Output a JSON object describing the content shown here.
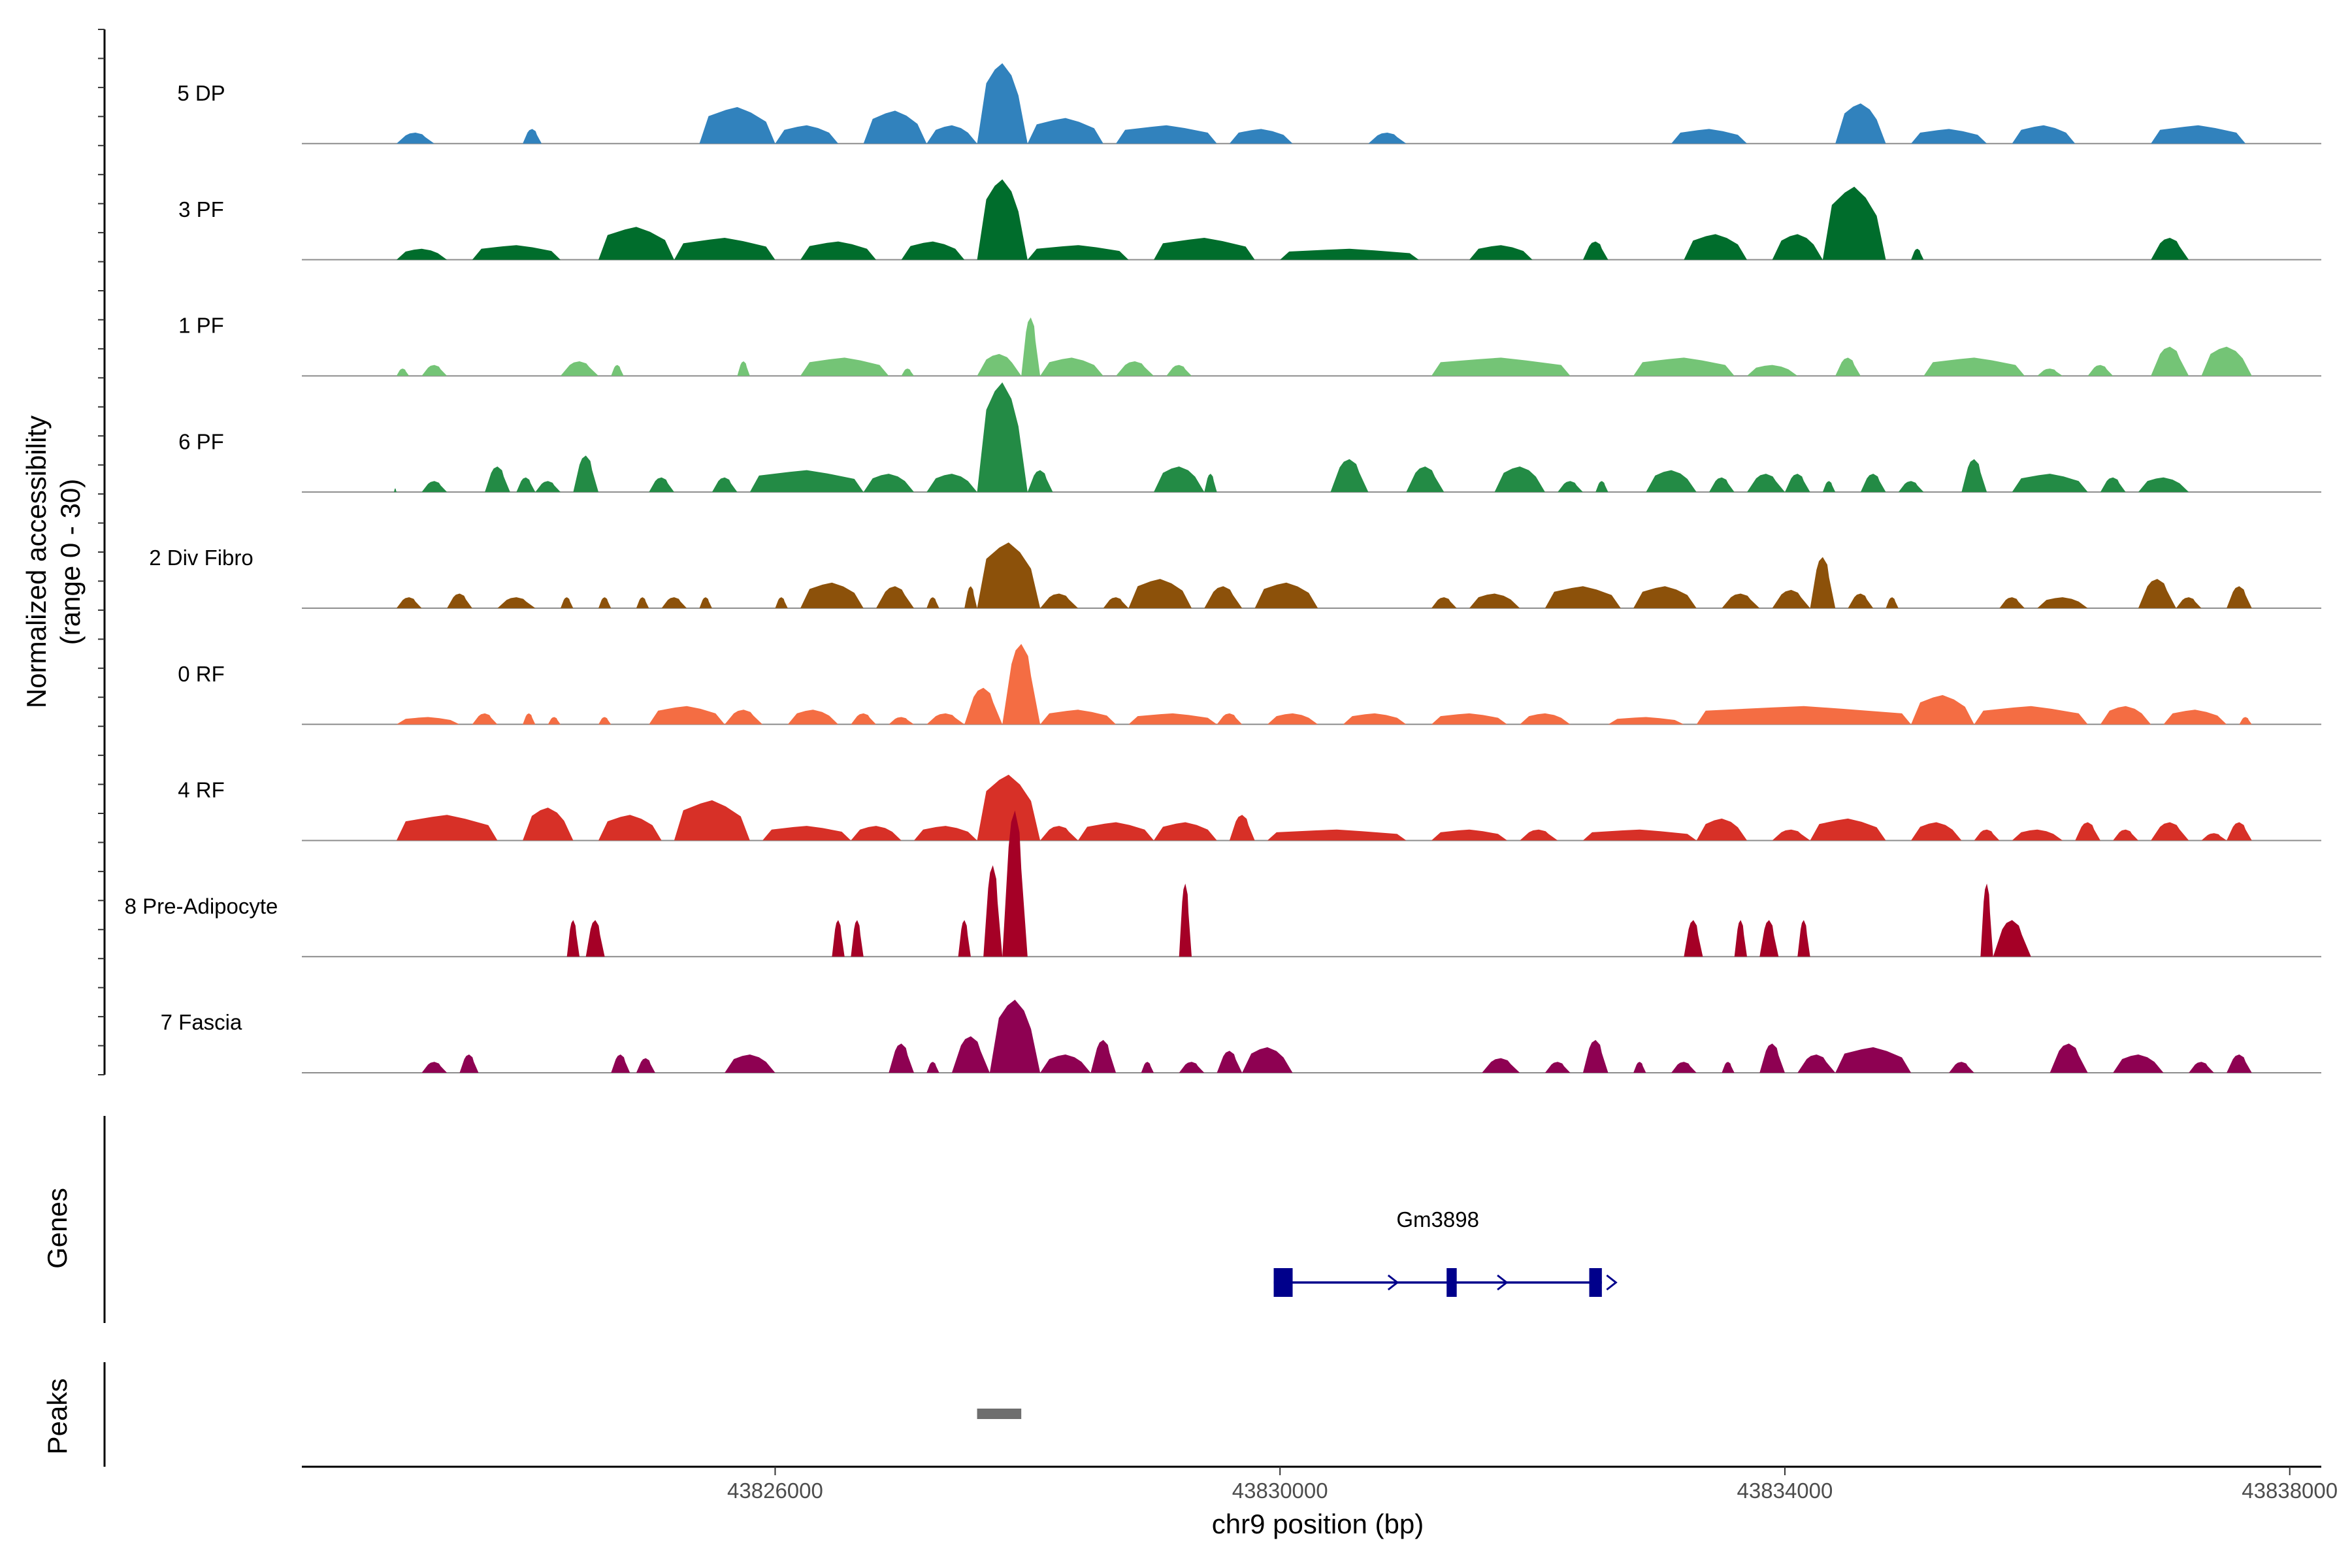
{
  "chart_data": {
    "type": "area",
    "title": "",
    "ylabel": [
      "Normalized accessibility",
      "(range 0 - 30)"
    ],
    "ylim": [
      0,
      30
    ],
    "xlabel": "chr9 position (bp)",
    "xlim": [
      43822250,
      43838250
    ],
    "xticks": [
      43826000,
      43830000,
      43834000,
      43838000
    ],
    "xtick_labels": [
      "43826000",
      "43830000",
      "43834000",
      "43838000"
    ],
    "tracks": [
      {
        "name": "5 DP",
        "color": "#3182bd",
        "regions": [
          [
            43823000,
            43823300,
            3
          ],
          [
            43824000,
            43824150,
            4
          ],
          [
            43825400,
            43826000,
            10
          ],
          [
            43826000,
            43826500,
            5
          ],
          [
            43826700,
            43827200,
            9
          ],
          [
            43827200,
            43827600,
            5
          ],
          [
            43827600,
            43828000,
            22
          ],
          [
            43828000,
            43828600,
            7
          ],
          [
            43828700,
            43829500,
            5
          ],
          [
            43829600,
            43830100,
            4
          ],
          [
            43830700,
            43831000,
            3
          ],
          [
            43833100,
            43833700,
            4
          ],
          [
            43834400,
            43834800,
            11
          ],
          [
            43835000,
            43835600,
            4
          ],
          [
            43835800,
            43836300,
            5
          ],
          [
            43836900,
            43837650,
            5
          ]
        ]
      },
      {
        "name": "3 PF",
        "color": "#006d2c",
        "regions": [
          [
            43823000,
            43823400,
            3
          ],
          [
            43823600,
            43824300,
            4
          ],
          [
            43824600,
            43825200,
            9
          ],
          [
            43825200,
            43826000,
            6
          ],
          [
            43826200,
            43826800,
            5
          ],
          [
            43827000,
            43827500,
            5
          ],
          [
            43827600,
            43828000,
            22
          ],
          [
            43828000,
            43828800,
            4
          ],
          [
            43829000,
            43829800,
            6
          ],
          [
            43830000,
            43831100,
            3
          ],
          [
            43831500,
            43832000,
            4
          ],
          [
            43832400,
            43832600,
            5
          ],
          [
            43833200,
            43833700,
            7
          ],
          [
            43833900,
            43834300,
            7
          ],
          [
            43834300,
            43834800,
            20
          ],
          [
            43835000,
            43835100,
            3
          ],
          [
            43836900,
            43837200,
            6
          ]
        ]
      },
      {
        "name": "1 PF",
        "color": "#74c476",
        "regions": [
          [
            43823000,
            43823100,
            2
          ],
          [
            43823200,
            43823400,
            3
          ],
          [
            43824300,
            43824600,
            4
          ],
          [
            43824700,
            43824800,
            3
          ],
          [
            43825700,
            43825800,
            4
          ],
          [
            43826200,
            43826900,
            5
          ],
          [
            43827000,
            43827100,
            2
          ],
          [
            43827600,
            43827950,
            6
          ],
          [
            43827950,
            43828100,
            16
          ],
          [
            43828100,
            43828600,
            5
          ],
          [
            43828700,
            43829000,
            4
          ],
          [
            43829100,
            43829300,
            3
          ],
          [
            43831200,
            43832300,
            5
          ],
          [
            43832800,
            43833600,
            5
          ],
          [
            43833700,
            43834100,
            3
          ],
          [
            43834400,
            43834600,
            5
          ],
          [
            43835100,
            43835900,
            5
          ],
          [
            43836000,
            43836200,
            2
          ],
          [
            43836400,
            43836600,
            3
          ],
          [
            43836900,
            43837200,
            8
          ],
          [
            43837300,
            43837700,
            8
          ]
        ]
      },
      {
        "name": "6 PF",
        "color": "#238b45",
        "regions": [
          [
            43822980,
            43823000,
            1
          ],
          [
            43823200,
            43823400,
            3
          ],
          [
            43823700,
            43823900,
            7
          ],
          [
            43823950,
            43824100,
            4
          ],
          [
            43824100,
            43824300,
            3
          ],
          [
            43824400,
            43824600,
            10
          ],
          [
            43825000,
            43825200,
            4
          ],
          [
            43825500,
            43825700,
            4
          ],
          [
            43825800,
            43826700,
            6
          ],
          [
            43826700,
            43827100,
            5
          ],
          [
            43827200,
            43827600,
            5
          ],
          [
            43827600,
            43828000,
            30
          ],
          [
            43828000,
            43828200,
            6
          ],
          [
            43829000,
            43829400,
            7
          ],
          [
            43829400,
            43829500,
            5
          ],
          [
            43830400,
            43830700,
            9
          ],
          [
            43831000,
            43831300,
            7
          ],
          [
            43831700,
            43832100,
            7
          ],
          [
            43832200,
            43832400,
            3
          ],
          [
            43832500,
            43832600,
            3
          ],
          [
            43832900,
            43833300,
            6
          ],
          [
            43833400,
            43833600,
            4
          ],
          [
            43833700,
            43834000,
            5
          ],
          [
            43834000,
            43834200,
            5
          ],
          [
            43834300,
            43834400,
            3
          ],
          [
            43834600,
            43834800,
            5
          ],
          [
            43834900,
            43835100,
            3
          ],
          [
            43835400,
            43835600,
            9
          ],
          [
            43835800,
            43836400,
            5
          ],
          [
            43836500,
            43836700,
            4
          ],
          [
            43836800,
            43837200,
            4
          ]
        ]
      },
      {
        "name": "2 Div Fibro",
        "color": "#8c510a",
        "regions": [
          [
            43823000,
            43823200,
            3
          ],
          [
            43823400,
            43823600,
            4
          ],
          [
            43823800,
            43824100,
            3
          ],
          [
            43824300,
            43824400,
            3
          ],
          [
            43824600,
            43824700,
            3
          ],
          [
            43824900,
            43825000,
            3
          ],
          [
            43825100,
            43825300,
            3
          ],
          [
            43825400,
            43825500,
            3
          ],
          [
            43826000,
            43826100,
            3
          ],
          [
            43826200,
            43826700,
            7
          ],
          [
            43826800,
            43827100,
            6
          ],
          [
            43827200,
            43827300,
            3
          ],
          [
            43827500,
            43827600,
            6
          ],
          [
            43827600,
            43828100,
            18
          ],
          [
            43828100,
            43828400,
            4
          ],
          [
            43828600,
            43828800,
            3
          ],
          [
            43828800,
            43829300,
            8
          ],
          [
            43829400,
            43829700,
            6
          ],
          [
            43829800,
            43830300,
            7
          ],
          [
            43831200,
            43831400,
            3
          ],
          [
            43831500,
            43831900,
            4
          ],
          [
            43832100,
            43832700,
            6
          ],
          [
            43832800,
            43833300,
            6
          ],
          [
            43833500,
            43833800,
            4
          ],
          [
            43833900,
            43834200,
            5
          ],
          [
            43834200,
            43834400,
            14
          ],
          [
            43834500,
            43834700,
            4
          ],
          [
            43834800,
            43834900,
            3
          ],
          [
            43835700,
            43835900,
            3
          ],
          [
            43836000,
            43836400,
            3
          ],
          [
            43836800,
            43837100,
            8
          ],
          [
            43837100,
            43837300,
            3
          ],
          [
            43837500,
            43837700,
            6
          ]
        ]
      },
      {
        "name": "0 RF",
        "color": "#f46d43",
        "regions": [
          [
            43823000,
            43823500,
            2
          ],
          [
            43823600,
            43823800,
            3
          ],
          [
            43824000,
            43824100,
            3
          ],
          [
            43824200,
            43824300,
            2
          ],
          [
            43824600,
            43824700,
            2
          ],
          [
            43825000,
            43825600,
            5
          ],
          [
            43825600,
            43825900,
            4
          ],
          [
            43826100,
            43826500,
            4
          ],
          [
            43826600,
            43826800,
            3
          ],
          [
            43826900,
            43827100,
            2
          ],
          [
            43827200,
            43827500,
            3
          ],
          [
            43827500,
            43827800,
            10
          ],
          [
            43827800,
            43828100,
            22
          ],
          [
            43828100,
            43828700,
            4
          ],
          [
            43828800,
            43829500,
            3
          ],
          [
            43829500,
            43829700,
            3
          ],
          [
            43829900,
            43830300,
            3
          ],
          [
            43830500,
            43831000,
            3
          ],
          [
            43831200,
            43831800,
            3
          ],
          [
            43831900,
            43832300,
            3
          ],
          [
            43832600,
            43833200,
            2
          ],
          [
            43833300,
            43835000,
            5
          ],
          [
            43835000,
            43835500,
            8
          ],
          [
            43835500,
            43836400,
            5
          ],
          [
            43836500,
            43836900,
            5
          ],
          [
            43837000,
            43837500,
            4
          ],
          [
            43837600,
            43837700,
            2
          ]
        ]
      },
      {
        "name": "4 RF",
        "color": "#d73027",
        "regions": [
          [
            43823000,
            43823800,
            7
          ],
          [
            43824000,
            43824400,
            9
          ],
          [
            43824600,
            43825100,
            7
          ],
          [
            43825200,
            43825800,
            11
          ],
          [
            43825900,
            43826600,
            4
          ],
          [
            43826600,
            43827000,
            4
          ],
          [
            43827100,
            43827600,
            4
          ],
          [
            43827600,
            43828100,
            18
          ],
          [
            43828100,
            43828400,
            4
          ],
          [
            43828400,
            43829000,
            5
          ],
          [
            43829000,
            43829500,
            5
          ],
          [
            43829600,
            43829800,
            7
          ],
          [
            43829900,
            43831000,
            3
          ],
          [
            43831200,
            43831800,
            3
          ],
          [
            43831900,
            43832200,
            3
          ],
          [
            43832400,
            43833300,
            3
          ],
          [
            43833300,
            43833700,
            6
          ],
          [
            43833900,
            43834200,
            3
          ],
          [
            43834200,
            43834800,
            6
          ],
          [
            43835000,
            43835400,
            5
          ],
          [
            43835500,
            43835700,
            3
          ],
          [
            43835800,
            43836200,
            3
          ],
          [
            43836300,
            43836500,
            5
          ],
          [
            43836600,
            43836800,
            3
          ],
          [
            43836900,
            43837200,
            5
          ],
          [
            43837300,
            43837500,
            2
          ],
          [
            43837500,
            43837700,
            5
          ]
        ]
      },
      {
        "name": "8 Pre-Adipocyte",
        "color": "#a50026",
        "regions": [
          [
            43824350,
            43824450,
            10
          ],
          [
            43824500,
            43824650,
            10
          ],
          [
            43826450,
            43826550,
            10
          ],
          [
            43826600,
            43826700,
            10
          ],
          [
            43827450,
            43827550,
            10
          ],
          [
            43827650,
            43827800,
            25
          ],
          [
            43827800,
            43828000,
            40
          ],
          [
            43829200,
            43829300,
            20
          ],
          [
            43833200,
            43833350,
            10
          ],
          [
            43833600,
            43833700,
            10
          ],
          [
            43833800,
            43833950,
            10
          ],
          [
            43834100,
            43834200,
            10
          ],
          [
            43835550,
            43835650,
            20
          ],
          [
            43835650,
            43835950,
            10
          ]
        ]
      },
      {
        "name": "7 Fascia",
        "color": "#8e0152",
        "regions": [
          [
            43823200,
            43823400,
            3
          ],
          [
            43823500,
            43823650,
            5
          ],
          [
            43824700,
            43824850,
            5
          ],
          [
            43824900,
            43825050,
            4
          ],
          [
            43825600,
            43826000,
            5
          ],
          [
            43826900,
            43827100,
            8
          ],
          [
            43827200,
            43827300,
            3
          ],
          [
            43827400,
            43827700,
            10
          ],
          [
            43827700,
            43828100,
            20
          ],
          [
            43828100,
            43828500,
            5
          ],
          [
            43828500,
            43828700,
            9
          ],
          [
            43828900,
            43829000,
            3
          ],
          [
            43829200,
            43829400,
            3
          ],
          [
            43829500,
            43829700,
            6
          ],
          [
            43829700,
            43830100,
            7
          ],
          [
            43831600,
            43831900,
            4
          ],
          [
            43832100,
            43832300,
            3
          ],
          [
            43832400,
            43832600,
            9
          ],
          [
            43832800,
            43832900,
            3
          ],
          [
            43833100,
            43833300,
            3
          ],
          [
            43833500,
            43833600,
            3
          ],
          [
            43833800,
            43834000,
            8
          ],
          [
            43834100,
            43834400,
            5
          ],
          [
            43834400,
            43835000,
            7
          ],
          [
            43835300,
            43835500,
            3
          ],
          [
            43836100,
            43836400,
            8
          ],
          [
            43836600,
            43837000,
            5
          ],
          [
            43837200,
            43837400,
            3
          ],
          [
            43837500,
            43837700,
            5
          ]
        ]
      }
    ],
    "genes_label": "Genes",
    "gene": {
      "name": "Gm3898",
      "start": 43829950,
      "end": 43832550,
      "strand": "+",
      "color": "#00008b",
      "exons": [
        [
          43829950,
          43830100
        ],
        [
          43831320,
          43831400
        ],
        [
          43832450,
          43832550
        ]
      ]
    },
    "peaks_label": "Peaks",
    "peaks": [
      [
        43827600,
        43827950
      ]
    ],
    "peaks_color": "#6e6e6e"
  }
}
